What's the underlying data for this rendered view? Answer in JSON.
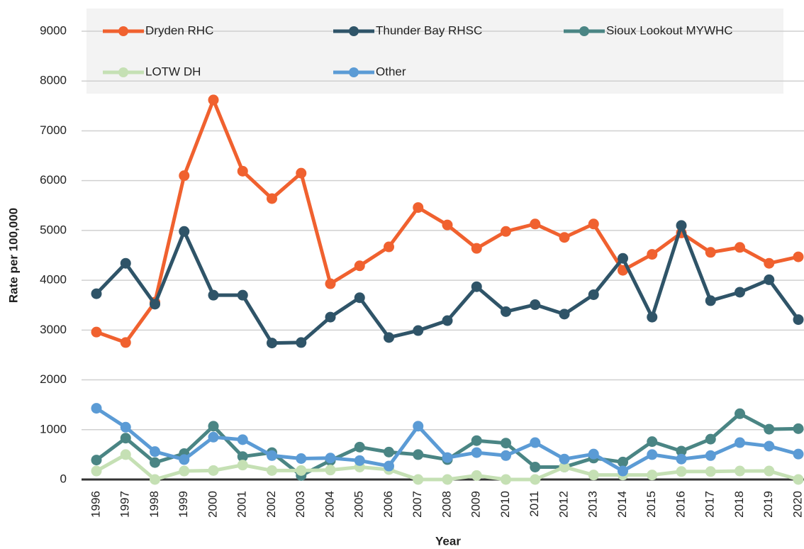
{
  "chart_data": {
    "type": "line",
    "x_label": "Year",
    "y_label": "Rate per 100,000",
    "categories": [
      "1996",
      "1997",
      "1998",
      "1999",
      "2000",
      "2001",
      "2002",
      "2003",
      "2004",
      "2005",
      "2006",
      "2007",
      "2008",
      "2009",
      "2010",
      "2011",
      "2012",
      "2013",
      "2014",
      "2015",
      "2016",
      "2017",
      "2018",
      "2019",
      "2020"
    ],
    "series": [
      {
        "name": "Dryden RHC",
        "color": "#f0612f",
        "values": [
          2960,
          2750,
          3560,
          6100,
          7620,
          6190,
          5640,
          6150,
          3930,
          4290,
          4670,
          5460,
          5110,
          4640,
          4980,
          5130,
          4860,
          5130,
          4200,
          4520,
          4950,
          4560,
          4660,
          4340,
          4470
        ]
      },
      {
        "name": "Thunder Bay RHSC",
        "color": "#2f5468",
        "values": [
          3730,
          4340,
          3520,
          4980,
          3700,
          3700,
          2740,
          2750,
          3260,
          3650,
          2850,
          2990,
          3190,
          3870,
          3370,
          3510,
          3320,
          3710,
          4440,
          3260,
          5100,
          3590,
          3760,
          4010,
          3210
        ]
      },
      {
        "name": "Sioux Lookout MYWHC",
        "color": "#4a8584",
        "values": [
          390,
          830,
          340,
          520,
          1070,
          460,
          540,
          80,
          380,
          650,
          550,
          500,
          400,
          780,
          730,
          250,
          250,
          430,
          350,
          760,
          570,
          810,
          1320,
          1010,
          1020
        ]
      },
      {
        "name": "LOTW DH",
        "color": "#c5e0b4",
        "values": [
          170,
          500,
          0,
          170,
          180,
          290,
          180,
          180,
          190,
          250,
          200,
          0,
          0,
          80,
          0,
          0,
          250,
          90,
          90,
          90,
          160,
          160,
          170,
          170,
          0
        ]
      },
      {
        "name": "Other",
        "color": "#5b9bd5",
        "values": [
          1430,
          1050,
          560,
          400,
          850,
          800,
          480,
          420,
          430,
          380,
          270,
          1070,
          440,
          540,
          480,
          740,
          410,
          510,
          170,
          500,
          410,
          480,
          740,
          670,
          510
        ]
      }
    ],
    "ylim": [
      0,
      9000
    ],
    "yticks": [
      0,
      1000,
      2000,
      3000,
      4000,
      5000,
      6000,
      7000,
      8000,
      9000
    ],
    "grid": true,
    "legend": "top"
  }
}
